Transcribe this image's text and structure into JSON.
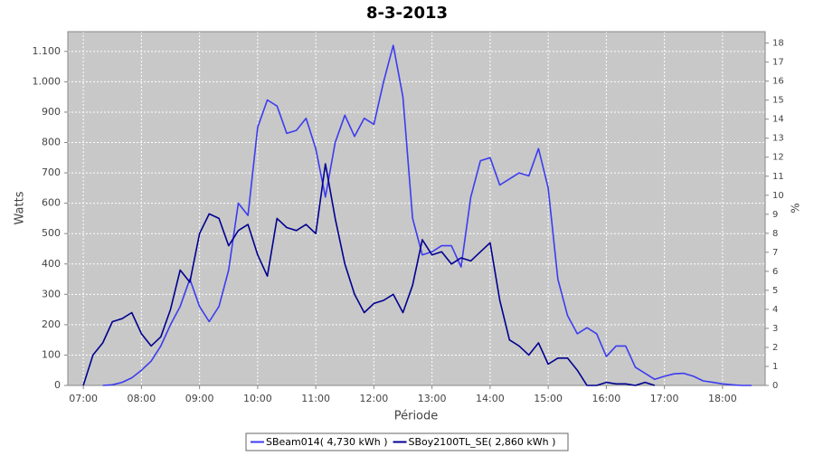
{
  "chart_data": {
    "type": "line",
    "title": "8-3-2013",
    "xlabel": "Période",
    "ylabel": "Watts",
    "y2label": "%",
    "x": [
      "07:00",
      "07:10",
      "07:20",
      "07:30",
      "07:40",
      "07:50",
      "08:00",
      "08:10",
      "08:20",
      "08:30",
      "08:40",
      "08:50",
      "09:00",
      "09:10",
      "09:20",
      "09:30",
      "09:40",
      "09:50",
      "10:00",
      "10:10",
      "10:20",
      "10:30",
      "10:40",
      "10:50",
      "11:00",
      "11:10",
      "11:20",
      "11:30",
      "11:40",
      "11:50",
      "12:00",
      "12:10",
      "12:20",
      "12:30",
      "12:40",
      "12:50",
      "13:00",
      "13:10",
      "13:20",
      "13:30",
      "13:40",
      "13:50",
      "14:00",
      "14:10",
      "14:20",
      "14:30",
      "14:40",
      "14:50",
      "15:00",
      "15:10",
      "15:20",
      "15:30",
      "15:40",
      "15:50",
      "16:00",
      "16:10",
      "16:20",
      "16:30",
      "16:40",
      "16:50",
      "17:00",
      "17:10",
      "17:20",
      "17:30",
      "17:40",
      "17:50",
      "18:00",
      "18:10",
      "18:20",
      "18:30"
    ],
    "series": [
      {
        "name": "SBeam014( 4,730 kWh )",
        "color": "#3c3cf0",
        "values": [
          null,
          null,
          0,
          2,
          10,
          25,
          50,
          80,
          130,
          200,
          260,
          350,
          260,
          210,
          260,
          380,
          600,
          560,
          850,
          940,
          920,
          830,
          840,
          880,
          780,
          620,
          800,
          890,
          820,
          880,
          860,
          1000,
          1120,
          950,
          550,
          430,
          440,
          460,
          460,
          390,
          620,
          740,
          750,
          660,
          680,
          700,
          690,
          780,
          650,
          350,
          230,
          170,
          190,
          170,
          95,
          130,
          130,
          60,
          40,
          20,
          30,
          38,
          40,
          30,
          15,
          10,
          5,
          2,
          0,
          0
        ]
      },
      {
        "name": "SBoy2100TL_SE( 2,860 kWh )",
        "color": "#000090",
        "values": [
          0,
          100,
          140,
          210,
          220,
          240,
          170,
          130,
          160,
          250,
          380,
          340,
          500,
          565,
          550,
          460,
          510,
          530,
          430,
          360,
          550,
          520,
          510,
          530,
          500,
          730,
          550,
          400,
          300,
          240,
          270,
          280,
          300,
          240,
          330,
          480,
          430,
          440,
          400,
          420,
          410,
          440,
          470,
          280,
          150,
          130,
          100,
          140,
          70,
          90,
          90,
          50,
          0,
          0,
          10,
          5,
          5,
          0,
          10,
          0,
          null,
          null,
          null,
          null,
          null,
          null,
          null,
          null,
          null,
          null
        ]
      }
    ],
    "xlim": [
      "06:44",
      "18:44"
    ],
    "xticks": [
      "07:00",
      "08:00",
      "09:00",
      "10:00",
      "11:00",
      "12:00",
      "13:00",
      "14:00",
      "15:00",
      "16:00",
      "17:00",
      "18:00"
    ],
    "ylim": [
      0,
      1165
    ],
    "yticks": [
      0,
      100,
      200,
      300,
      400,
      500,
      600,
      700,
      800,
      900,
      {
        "value": 1000,
        "label": "1.000"
      },
      {
        "value": 1100,
        "label": "1.100"
      }
    ],
    "y2lim": [
      0,
      18.6
    ],
    "y2ticks": [
      0,
      1,
      2,
      3,
      4,
      5,
      6,
      7,
      8,
      9,
      10,
      11,
      12,
      13,
      14,
      15,
      16,
      17,
      18
    ],
    "grid": true
  }
}
